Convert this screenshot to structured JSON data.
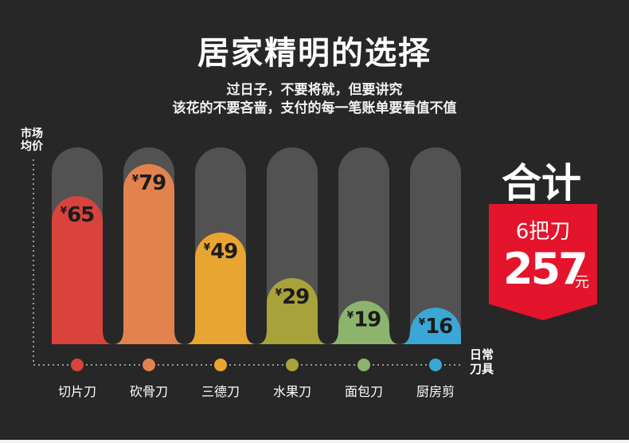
{
  "header": {
    "title": "居家精明的选择",
    "subtitle_line1": "过日子，不要将就，但要讲究",
    "subtitle_line2": "该花的不要吝啬，支付的每一笔账单要看值不值"
  },
  "badge": {
    "title": "合计",
    "count": "6把刀",
    "total": "257",
    "unit": "元"
  },
  "chart_data": {
    "type": "bar",
    "ylabel": "市场均价",
    "xlabel": "日常刀具",
    "currency_symbol": "¥",
    "categories": [
      "切片刀",
      "砍骨刀",
      "三德刀",
      "水果刀",
      "面包刀",
      "厨房剪"
    ],
    "values": [
      65,
      79,
      49,
      29,
      19,
      16
    ],
    "colors": [
      "#d9433c",
      "#e2834d",
      "#e9a531",
      "#a7a23a",
      "#8db46d",
      "#3ba7d6"
    ],
    "track_color": "#525252",
    "grid": false
  }
}
